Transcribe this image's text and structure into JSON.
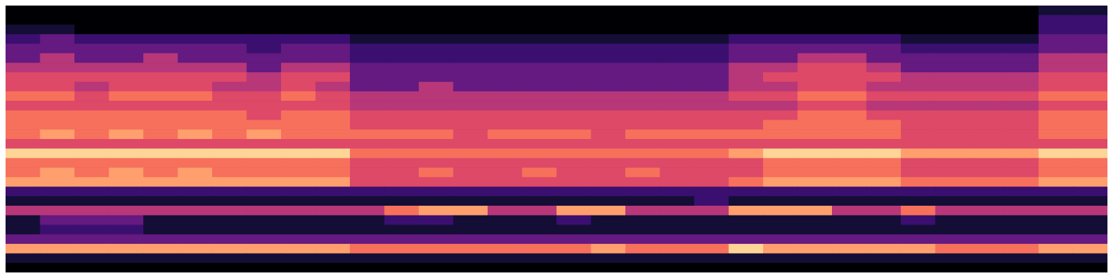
{
  "chart_data": {
    "type": "heatmap",
    "tick_labels": false,
    "values": [
      [
        0,
        0,
        0,
        0,
        0,
        0,
        0,
        0,
        0,
        0,
        0,
        0,
        0,
        0,
        0,
        0,
        0,
        0,
        0,
        0,
        0,
        0,
        0,
        0,
        0,
        0,
        0,
        0,
        0,
        0,
        1,
        1
      ],
      [
        0,
        0,
        0,
        0,
        0,
        0,
        0,
        0,
        0,
        0,
        0,
        0,
        0,
        0,
        0,
        0,
        0,
        0,
        0,
        0,
        0,
        0,
        0,
        0,
        0,
        0,
        0,
        0,
        0,
        0,
        2,
        2
      ],
      [
        1,
        1,
        0,
        0,
        0,
        0,
        0,
        0,
        0,
        0,
        0,
        0,
        0,
        0,
        0,
        0,
        0,
        0,
        0,
        0,
        0,
        0,
        0,
        0,
        0,
        0,
        0,
        0,
        0,
        0,
        2,
        2
      ],
      [
        2,
        3,
        2,
        2,
        2,
        2,
        2,
        2,
        2,
        2,
        1,
        1,
        1,
        1,
        1,
        1,
        1,
        1,
        1,
        1,
        1,
        2,
        2,
        2,
        2,
        2,
        1,
        1,
        1,
        1,
        3,
        3
      ],
      [
        3,
        3,
        3,
        3,
        3,
        3,
        3,
        2,
        3,
        3,
        2,
        2,
        2,
        2,
        2,
        2,
        2,
        2,
        2,
        2,
        2,
        3,
        3,
        3,
        3,
        3,
        2,
        2,
        2,
        2,
        3,
        3
      ],
      [
        3,
        4,
        3,
        3,
        4,
        3,
        3,
        3,
        3,
        3,
        2,
        2,
        2,
        2,
        2,
        2,
        2,
        2,
        2,
        2,
        2,
        3,
        3,
        4,
        4,
        3,
        3,
        3,
        3,
        3,
        4,
        4
      ],
      [
        4,
        4,
        4,
        4,
        4,
        4,
        4,
        3,
        4,
        4,
        3,
        3,
        3,
        3,
        3,
        3,
        3,
        3,
        3,
        3,
        3,
        4,
        4,
        5,
        5,
        4,
        3,
        3,
        3,
        3,
        4,
        4
      ],
      [
        5,
        5,
        5,
        5,
        5,
        5,
        5,
        4,
        5,
        5,
        3,
        3,
        3,
        3,
        3,
        3,
        3,
        3,
        3,
        3,
        3,
        4,
        5,
        5,
        5,
        5,
        4,
        4,
        4,
        4,
        5,
        5
      ],
      [
        5,
        5,
        4,
        5,
        5,
        5,
        4,
        4,
        5,
        4,
        3,
        3,
        4,
        3,
        3,
        3,
        3,
        3,
        3,
        3,
        3,
        4,
        4,
        5,
        5,
        4,
        4,
        4,
        4,
        4,
        5,
        5
      ],
      [
        6,
        6,
        5,
        6,
        6,
        6,
        5,
        5,
        6,
        5,
        4,
        4,
        4,
        4,
        4,
        4,
        4,
        4,
        4,
        4,
        4,
        5,
        5,
        6,
        6,
        5,
        5,
        5,
        5,
        5,
        6,
        6
      ],
      [
        5,
        5,
        5,
        5,
        5,
        5,
        5,
        5,
        5,
        5,
        4,
        4,
        4,
        4,
        4,
        4,
        4,
        4,
        4,
        4,
        4,
        4,
        4,
        5,
        5,
        4,
        4,
        4,
        4,
        4,
        5,
        5
      ],
      [
        6,
        6,
        6,
        6,
        6,
        6,
        6,
        5,
        6,
        6,
        5,
        5,
        5,
        5,
        5,
        5,
        5,
        5,
        5,
        5,
        5,
        5,
        5,
        6,
        6,
        5,
        5,
        5,
        5,
        5,
        6,
        6
      ],
      [
        6,
        6,
        6,
        6,
        6,
        6,
        6,
        6,
        6,
        6,
        5,
        5,
        5,
        5,
        5,
        5,
        5,
        5,
        5,
        5,
        5,
        5,
        6,
        6,
        6,
        6,
        5,
        5,
        5,
        5,
        6,
        6
      ],
      [
        6,
        7,
        6,
        7,
        6,
        7,
        6,
        7,
        6,
        6,
        6,
        6,
        6,
        5,
        6,
        6,
        6,
        5,
        6,
        6,
        6,
        6,
        6,
        6,
        6,
        6,
        5,
        5,
        5,
        5,
        6,
        6
      ],
      [
        5,
        5,
        5,
        5,
        5,
        5,
        5,
        5,
        5,
        5,
        5,
        5,
        5,
        5,
        5,
        5,
        5,
        5,
        5,
        5,
        5,
        5,
        5,
        5,
        5,
        5,
        5,
        5,
        5,
        5,
        5,
        5
      ],
      [
        8,
        8,
        8,
        8,
        8,
        8,
        8,
        8,
        8,
        8,
        6,
        6,
        6,
        6,
        6,
        6,
        6,
        6,
        6,
        6,
        6,
        7,
        8,
        8,
        8,
        8,
        7,
        7,
        7,
        7,
        8,
        8
      ],
      [
        6,
        6,
        6,
        6,
        6,
        6,
        6,
        6,
        6,
        6,
        5,
        5,
        5,
        5,
        5,
        5,
        5,
        5,
        5,
        5,
        5,
        5,
        6,
        6,
        6,
        6,
        5,
        5,
        5,
        5,
        6,
        6
      ],
      [
        6,
        7,
        6,
        7,
        6,
        7,
        6,
        6,
        6,
        6,
        5,
        5,
        6,
        5,
        5,
        6,
        5,
        5,
        6,
        5,
        5,
        5,
        6,
        6,
        6,
        6,
        5,
        5,
        5,
        5,
        6,
        6
      ],
      [
        7,
        7,
        7,
        7,
        7,
        7,
        7,
        7,
        7,
        7,
        5,
        5,
        5,
        5,
        5,
        5,
        5,
        5,
        5,
        5,
        5,
        6,
        7,
        7,
        7,
        7,
        6,
        6,
        6,
        6,
        7,
        7
      ],
      [
        2,
        2,
        2,
        2,
        2,
        2,
        2,
        2,
        2,
        2,
        2,
        2,
        2,
        2,
        2,
        2,
        2,
        2,
        2,
        2,
        2,
        2,
        2,
        2,
        2,
        2,
        2,
        2,
        2,
        2,
        2,
        2
      ],
      [
        1,
        1,
        1,
        1,
        1,
        1,
        1,
        1,
        1,
        1,
        1,
        1,
        1,
        1,
        1,
        1,
        1,
        1,
        1,
        1,
        2,
        1,
        1,
        1,
        1,
        1,
        1,
        1,
        1,
        1,
        1,
        1
      ],
      [
        4,
        4,
        4,
        4,
        4,
        4,
        4,
        4,
        4,
        4,
        4,
        6,
        7,
        7,
        4,
        4,
        7,
        7,
        4,
        4,
        4,
        7,
        7,
        7,
        4,
        4,
        6,
        4,
        4,
        4,
        4,
        4
      ],
      [
        1,
        3,
        3,
        3,
        1,
        1,
        1,
        1,
        1,
        1,
        1,
        2,
        2,
        1,
        1,
        1,
        2,
        1,
        1,
        1,
        1,
        1,
        1,
        1,
        1,
        1,
        2,
        1,
        1,
        1,
        1,
        1
      ],
      [
        1,
        2,
        2,
        2,
        1,
        1,
        1,
        1,
        1,
        1,
        1,
        1,
        1,
        1,
        1,
        1,
        1,
        1,
        1,
        1,
        1,
        1,
        1,
        1,
        1,
        1,
        1,
        1,
        1,
        1,
        1,
        1
      ],
      [
        3,
        3,
        3,
        3,
        3,
        3,
        3,
        3,
        3,
        3,
        3,
        3,
        3,
        3,
        3,
        3,
        3,
        3,
        3,
        3,
        3,
        3,
        3,
        3,
        3,
        3,
        3,
        3,
        3,
        3,
        3,
        3
      ],
      [
        7,
        7,
        7,
        7,
        7,
        7,
        7,
        7,
        7,
        7,
        6,
        6,
        6,
        6,
        6,
        6,
        6,
        7,
        6,
        6,
        6,
        8,
        7,
        7,
        7,
        7,
        7,
        6,
        6,
        6,
        7,
        7
      ],
      [
        1,
        1,
        1,
        1,
        1,
        1,
        1,
        1,
        1,
        1,
        1,
        1,
        1,
        1,
        1,
        1,
        1,
        1,
        1,
        1,
        1,
        1,
        1,
        1,
        1,
        1,
        1,
        1,
        1,
        1,
        1,
        1
      ],
      [
        0,
        0,
        0,
        0,
        0,
        0,
        0,
        0,
        0,
        0,
        0,
        0,
        0,
        0,
        0,
        0,
        0,
        0,
        0,
        0,
        0,
        0,
        0,
        0,
        0,
        0,
        0,
        0,
        0,
        0,
        0,
        0
      ]
    ]
  }
}
